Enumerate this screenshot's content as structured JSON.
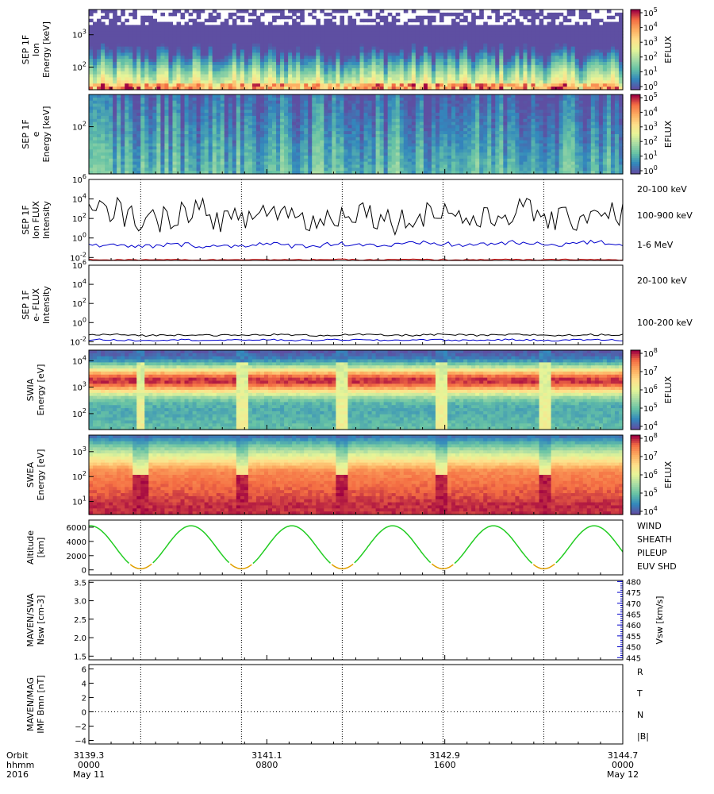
{
  "chart_data": [
    {
      "type": "heatmap",
      "ylabel_lines": [
        "SEP 1F",
        "Ion",
        "Energy [keV]"
      ],
      "yticks": [
        {
          "label": "10",
          "exp": "3"
        },
        {
          "label": "10",
          "exp": "2"
        }
      ],
      "ylim": [
        20,
        6000
      ],
      "yscale": "log",
      "colorbar": {
        "label": "EFLUX",
        "ticks": [
          {
            "label": "10",
            "exp": "5"
          },
          {
            "label": "10",
            "exp": "4"
          },
          {
            "label": "10",
            "exp": "3"
          },
          {
            "label": "10",
            "exp": "2"
          },
          {
            "label": "10",
            "exp": "1"
          },
          {
            "label": "10",
            "exp": "0"
          }
        ]
      }
    },
    {
      "type": "heatmap",
      "ylabel_lines": [
        "SEP 1F",
        "e",
        "Energy [keV]"
      ],
      "yticks": [
        {
          "label": "10",
          "exp": "2"
        }
      ],
      "ylim": [
        20,
        300
      ],
      "yscale": "log",
      "colorbar": {
        "label": "EFLUX",
        "ticks": [
          {
            "label": "10",
            "exp": "5"
          },
          {
            "label": "10",
            "exp": "4"
          },
          {
            "label": "10",
            "exp": "3"
          },
          {
            "label": "10",
            "exp": "2"
          },
          {
            "label": "10",
            "exp": "1"
          },
          {
            "label": "10",
            "exp": "0"
          }
        ]
      }
    },
    {
      "type": "line",
      "ylabel_lines": [
        "SEP 1F",
        "Ion FLUX",
        "Intensity"
      ],
      "yticks": [
        {
          "label": "10",
          "exp": "6"
        },
        {
          "label": "10",
          "exp": "4"
        },
        {
          "label": "10",
          "exp": "2"
        },
        {
          "label": "10",
          "exp": "0"
        },
        {
          "label": "10",
          "exp": "-2"
        }
      ],
      "ylim": [
        0.005,
        1000000
      ],
      "yscale": "log",
      "series": [
        {
          "name": "20-100 keV",
          "color": "#000000",
          "level": 200,
          "noise": 1.4
        },
        {
          "name": "100-900 keV",
          "color": "#0000cc",
          "level": 0.15,
          "noise": 0.25
        },
        {
          "name": "1-6 MeV",
          "color": "#cc0000",
          "level": 0.006,
          "noise": 0.05
        }
      ]
    },
    {
      "type": "line",
      "ylabel_lines": [
        "SEP 1F",
        "e- FLUX",
        "Intensity"
      ],
      "yticks": [
        {
          "label": "10",
          "exp": "6"
        },
        {
          "label": "10",
          "exp": "4"
        },
        {
          "label": "10",
          "exp": "2"
        },
        {
          "label": "10",
          "exp": "0"
        },
        {
          "label": "10",
          "exp": "-2"
        }
      ],
      "ylim": [
        0.005,
        1000000
      ],
      "yscale": "log",
      "series": [
        {
          "name": "20-100 keV",
          "color": "#000000",
          "level": 0.05,
          "noise": 0.1
        },
        {
          "name": "100-200 keV",
          "color": "#0000cc",
          "level": 0.015,
          "noise": 0.08
        }
      ]
    },
    {
      "type": "heatmap",
      "ylabel_lines": [
        "SWIA",
        "Energy [eV]"
      ],
      "yticks": [
        {
          "label": "10",
          "exp": "4"
        },
        {
          "label": "10",
          "exp": "3"
        },
        {
          "label": "10",
          "exp": "2"
        }
      ],
      "ylim": [
        25,
        25000
      ],
      "yscale": "log",
      "colorbar": {
        "label": "EFLUX",
        "ticks": [
          {
            "label": "10",
            "exp": "8"
          },
          {
            "label": "10",
            "exp": "7"
          },
          {
            "label": "10",
            "exp": "6"
          },
          {
            "label": "10",
            "exp": "5"
          },
          {
            "label": "10",
            "exp": "4"
          }
        ]
      }
    },
    {
      "type": "heatmap",
      "ylabel_lines": [
        "SWEA",
        "Energy [eV]"
      ],
      "yticks": [
        {
          "label": "10",
          "exp": "3"
        },
        {
          "label": "10",
          "exp": "2"
        },
        {
          "label": "10",
          "exp": "1"
        }
      ],
      "ylim": [
        3,
        4600
      ],
      "yscale": "log",
      "colorbar": {
        "label": "EFLUX",
        "ticks": [
          {
            "label": "10",
            "exp": "8"
          },
          {
            "label": "10",
            "exp": "7"
          },
          {
            "label": "10",
            "exp": "6"
          },
          {
            "label": "10",
            "exp": "5"
          },
          {
            "label": "10",
            "exp": "4"
          }
        ]
      }
    },
    {
      "type": "line",
      "ylabel_lines": [
        "Altitude",
        "[km]"
      ],
      "yticks": [
        {
          "label": "6000"
        },
        {
          "label": "4000"
        },
        {
          "label": "2000"
        },
        {
          "label": "0"
        }
      ],
      "ytick_values": [
        6000,
        4000,
        2000,
        0
      ],
      "ylim": [
        -700,
        7000
      ],
      "legend": [
        {
          "name": "WIND",
          "color": "#000000"
        },
        {
          "name": "SHEATH",
          "color": "#22cc22"
        },
        {
          "name": "PILEUP",
          "color": "#e0a000"
        },
        {
          "name": "EUV SHD",
          "color": "#0000cc"
        }
      ],
      "orbit": {
        "apoapsis_km": 6200,
        "periapsis_km": 150,
        "period_hr": 4.53,
        "first_periapsis_hr": 2.33
      }
    },
    {
      "type": "line",
      "ylabel_lines": [
        "MAVEN/SWA",
        "Nsw [cm-3]"
      ],
      "yticks": [
        {
          "label": "3.5"
        },
        {
          "label": "3.0"
        },
        {
          "label": "2.5"
        },
        {
          "label": "2.0"
        },
        {
          "label": "1.5"
        }
      ],
      "ytick_values": [
        3.5,
        3.0,
        2.5,
        2.0,
        1.5
      ],
      "ylim": [
        1.4,
        3.55
      ],
      "right_axis": {
        "label": "Vsw [km/s]",
        "ticks": [
          "480",
          "475",
          "470",
          "465",
          "460",
          "455",
          "450",
          "445"
        ],
        "tick_values": [
          480,
          475,
          470,
          465,
          460,
          455,
          450,
          445
        ],
        "ylim": [
          444,
          480.5
        ]
      }
    },
    {
      "type": "line",
      "ylabel_lines": [
        "MAVEN/MAG",
        "IMF Bmn [nT]"
      ],
      "yticks": [
        {
          "label": "6"
        },
        {
          "label": "4"
        },
        {
          "label": "2"
        },
        {
          "label": "0"
        },
        {
          "label": "−2"
        },
        {
          "label": "−4"
        }
      ],
      "ytick_values": [
        6,
        4,
        2,
        0,
        -2,
        -4
      ],
      "ylim": [
        -4.5,
        6.6
      ],
      "legend": [
        {
          "name": "R",
          "color": "#0000cc"
        },
        {
          "name": "T",
          "color": "#22cc22"
        },
        {
          "name": "N",
          "color": "#cc0000"
        },
        {
          "name": "|B|",
          "color": "#000000"
        }
      ]
    }
  ],
  "time_axis": {
    "row_labels": [
      "Orbit",
      "hhmm",
      "2016"
    ],
    "xlim_hours": [
      0,
      24
    ],
    "ticks": [
      {
        "hour": 0,
        "orbit": "3139.3",
        "hhmm": "0000",
        "date": "May 11"
      },
      {
        "hour": 8,
        "orbit": "3141.1",
        "hhmm": "0800",
        "date": ""
      },
      {
        "hour": 16,
        "orbit": "3142.9",
        "hhmm": "1600",
        "date": ""
      },
      {
        "hour": 24,
        "orbit": "3144.7",
        "hhmm": "0000",
        "date": "May 12"
      }
    ],
    "periapsis_hours": [
      2.33,
      6.86,
      11.39,
      15.92,
      20.45
    ]
  }
}
